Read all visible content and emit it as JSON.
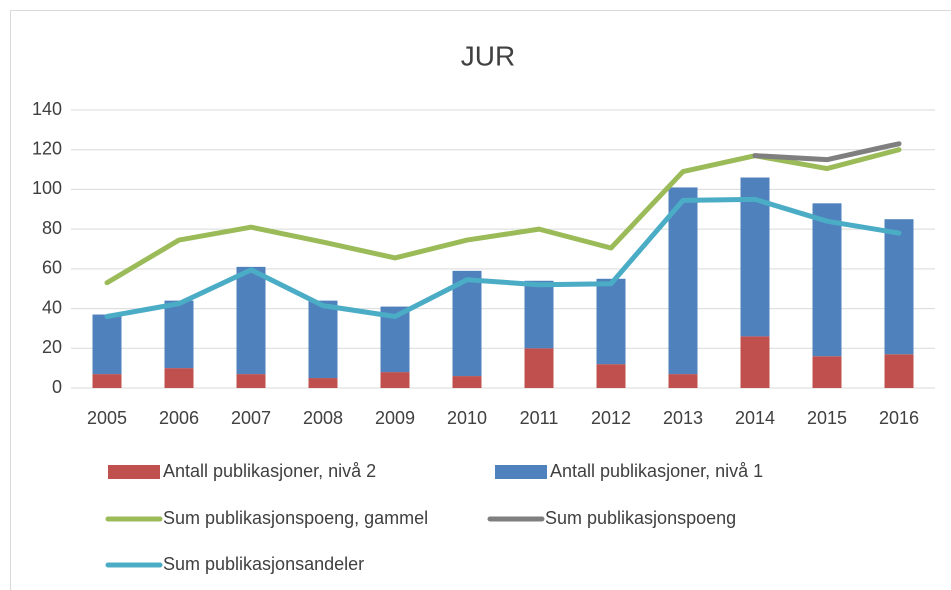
{
  "chart_data": {
    "type": "bar",
    "title": "JUR",
    "categories": [
      "2005",
      "2006",
      "2007",
      "2008",
      "2009",
      "2010",
      "2011",
      "2012",
      "2013",
      "2014",
      "2015",
      "2016"
    ],
    "series": [
      {
        "name": "Antall publikasjoner, nivå 2",
        "type": "bar",
        "color": "#c0504d",
        "values": [
          7,
          10,
          7,
          5,
          8,
          6,
          20,
          12,
          7,
          26,
          16,
          17
        ]
      },
      {
        "name": "Antall publikasjoner, nivå 1",
        "type": "bar",
        "color": "#4f81bd",
        "values": [
          30,
          34,
          54,
          39,
          33,
          53,
          34,
          43,
          94,
          80,
          77,
          68
        ]
      },
      {
        "name": "Sum publikasjonspoeng, gammel",
        "type": "line",
        "color": "#9bbb59",
        "values": [
          53,
          74.5,
          81,
          73.5,
          65.5,
          74.5,
          80,
          70.5,
          109,
          117,
          110.5,
          120
        ]
      },
      {
        "name": "Sum publikasjonspoeng",
        "type": "line",
        "color": "#7f7f7f",
        "values": [
          null,
          null,
          null,
          null,
          null,
          null,
          null,
          null,
          null,
          117,
          115,
          123
        ]
      },
      {
        "name": "Sum publikasjonsandeler",
        "type": "line",
        "color": "#4bacc6",
        "values": [
          36,
          42.5,
          59.5,
          41.5,
          36,
          54.5,
          52,
          52.5,
          94.5,
          95,
          84,
          78
        ]
      }
    ],
    "ylim": [
      0,
      140
    ],
    "yticks": [
      0,
      20,
      40,
      60,
      80,
      100,
      120,
      140
    ],
    "grid": true,
    "legend": "bottom"
  }
}
